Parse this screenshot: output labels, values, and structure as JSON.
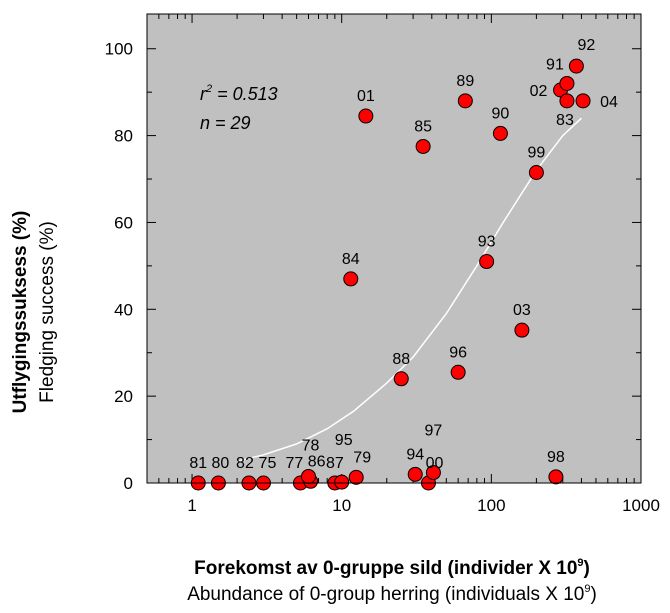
{
  "chart_data": {
    "type": "scatter",
    "xscale": "log",
    "xlim": [
      0.5,
      1000
    ],
    "ylim": [
      0,
      108
    ],
    "xticks": [
      {
        "value": 1,
        "label": "1"
      },
      {
        "value": 10,
        "label": "10"
      },
      {
        "value": 100,
        "label": "100"
      },
      {
        "value": 1000,
        "label": "1000"
      }
    ],
    "yticks": [
      {
        "value": 0,
        "label": "0"
      },
      {
        "value": 20,
        "label": "20"
      },
      {
        "value": 40,
        "label": "40"
      },
      {
        "value": 60,
        "label": "60"
      },
      {
        "value": 80,
        "label": "80"
      },
      {
        "value": 100,
        "label": "100"
      }
    ],
    "ylabel_primary": "Utflygingssuksess (%)",
    "ylabel_secondary": "Fledging success (%)",
    "xlabel_primary": "Forekomst av 0-gruppe sild (individer X 10",
    "xlabel_primary_exp": "9",
    "xlabel_primary_end": ")",
    "xlabel_secondary": "Abundance of 0-group herring (individuals X 10",
    "xlabel_secondary_exp": "9",
    "xlabel_secondary_end": ")",
    "stats": {
      "r2_base": "r",
      "r2_exp": "2",
      "r2_value": " = 0.513",
      "n": "n = 29"
    },
    "grid": false,
    "background_color": "#c0c0c0",
    "point_color": "#ff0000",
    "curve_color": "#ffffff",
    "fit_curve": {
      "x": [
        2,
        3,
        5,
        8,
        12,
        20,
        30,
        50,
        80,
        120,
        200,
        300,
        400
      ],
      "y": [
        5,
        6.5,
        9,
        12.5,
        16.5,
        23,
        29,
        39,
        50,
        60,
        72,
        80,
        84
      ]
    },
    "points": [
      {
        "label": "81",
        "x": 1.1,
        "y": 0
      },
      {
        "label": "80",
        "x": 1.5,
        "y": 0
      },
      {
        "label": "82",
        "x": 2.4,
        "y": 0
      },
      {
        "label": "75",
        "x": 3.0,
        "y": 0
      },
      {
        "label": "77",
        "x": 5.3,
        "y": 0
      },
      {
        "label": "86",
        "x": 6.2,
        "y": 0.4
      },
      {
        "label": "78",
        "x": 6.0,
        "y": 1.5
      },
      {
        "label": "87",
        "x": 9.0,
        "y": 0
      },
      {
        "label": "95",
        "x": 10.0,
        "y": 0.2
      },
      {
        "label": "79",
        "x": 12.5,
        "y": 1.3
      },
      {
        "label": "94",
        "x": 31,
        "y": 2
      },
      {
        "label": "00",
        "x": 38,
        "y": 0
      },
      {
        "label": "97",
        "x": 41,
        "y": 2.4
      },
      {
        "label": "98",
        "x": 270,
        "y": 1.4
      },
      {
        "label": "84",
        "x": 11.5,
        "y": 47
      },
      {
        "label": "88",
        "x": 25,
        "y": 24
      },
      {
        "label": "96",
        "x": 60,
        "y": 25.5
      },
      {
        "label": "93",
        "x": 93,
        "y": 51
      },
      {
        "label": "03",
        "x": 160,
        "y": 35.2
      },
      {
        "label": "99",
        "x": 200,
        "y": 71.5
      },
      {
        "label": "01",
        "x": 14.5,
        "y": 84.5
      },
      {
        "label": "85",
        "x": 35,
        "y": 77.5
      },
      {
        "label": "89",
        "x": 67,
        "y": 88
      },
      {
        "label": "90",
        "x": 115,
        "y": 80.5
      },
      {
        "label": "02",
        "x": 290,
        "y": 90.5
      },
      {
        "label": "91",
        "x": 320,
        "y": 92
      },
      {
        "label": "83",
        "x": 320,
        "y": 88
      },
      {
        "label": "92",
        "x": 370,
        "y": 96
      },
      {
        "label": "04",
        "x": 410,
        "y": 88
      }
    ]
  }
}
